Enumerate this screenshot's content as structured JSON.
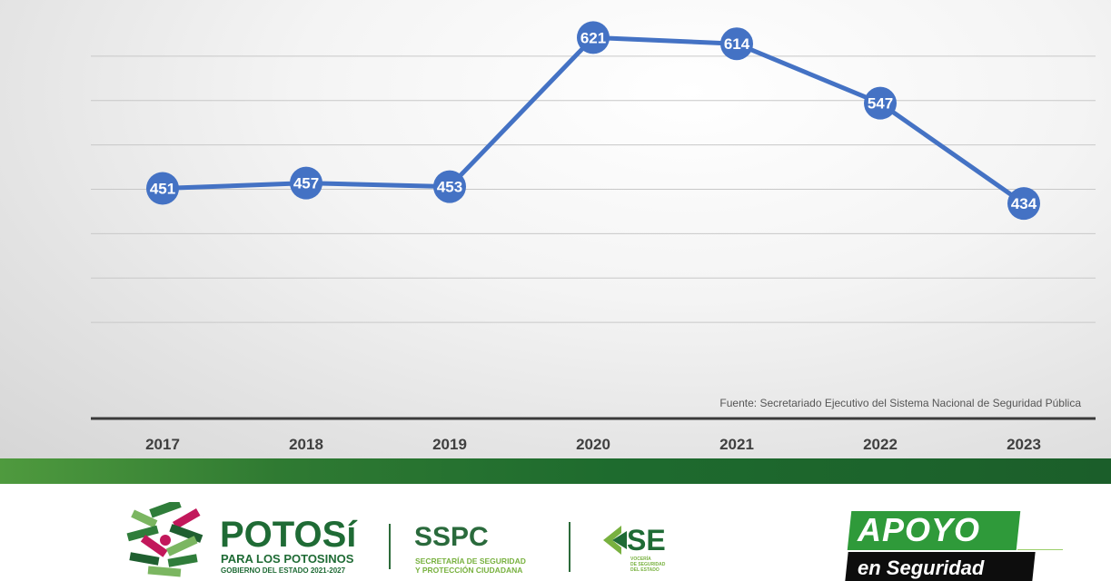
{
  "chart_data": {
    "type": "line",
    "categories": [
      "2017",
      "2018",
      "2019",
      "2020",
      "2021",
      "2022",
      "2023"
    ],
    "series": [
      {
        "values": [
          451,
          457,
          453,
          621,
          614,
          547,
          434
        ]
      }
    ],
    "data_labels": [
      "451",
      "457",
      "453",
      "621",
      "614",
      "547",
      "434"
    ],
    "ylim": [
      250,
      650
    ],
    "grid": true,
    "legend": "none",
    "colors": {
      "line": "#4472c4",
      "marker": "#4472c4",
      "label": "#ffffff",
      "grid": "#c8c8c8",
      "axis": "#3a3a3a"
    }
  },
  "source_note": "Fuente: Secretariado Ejecutivo del Sistema Nacional de Seguridad Pública",
  "footer": {
    "potosi": {
      "title": "POTOSí",
      "subtitle": "PARA LOS POTOSINOS",
      "government": "GOBIERNO DEL ESTADO 2021-2027"
    },
    "sspc": {
      "title": "SSPC",
      "line1": "SECRETARÍA DE SEGURIDAD",
      "line2": "Y PROTECCIÓN CIUDADANA"
    },
    "se": {
      "title": "SE",
      "line1": "VOCERÍA",
      "line2": "DE SEGURIDAD",
      "line3": "DEL ESTADO"
    },
    "badge": {
      "top": "APOYO",
      "bottom": "en Seguridad"
    }
  }
}
